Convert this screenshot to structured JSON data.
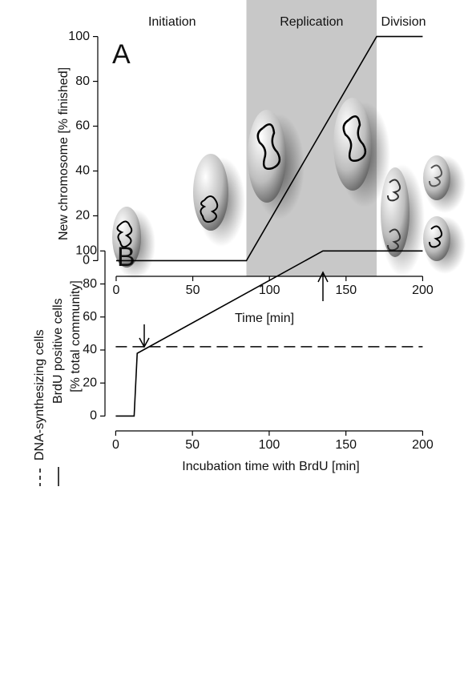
{
  "chart_data": [
    {
      "type": "line",
      "panel_label": "A",
      "xlabel": "Time [min]",
      "ylabel": "New chromosome [% finished]",
      "x": [
        0,
        85,
        170,
        200
      ],
      "values": [
        0,
        0,
        100,
        100
      ],
      "color": "#000000",
      "shaded_xrange": [
        85,
        170
      ],
      "shade_color": "#c8c8c8",
      "phases": [
        "Initiation",
        "Replication",
        "Division"
      ],
      "xlim": [
        -12,
        205
      ],
      "ylim": [
        -7,
        102
      ],
      "xticks": [
        0,
        50,
        100,
        150,
        200
      ],
      "yticks": [
        0,
        20,
        40,
        60,
        80,
        100
      ]
    },
    {
      "type": "line",
      "panel_label": "B",
      "xlabel": "Incubation time with BrdU [min]",
      "ylabel": "[% total community]",
      "series": [
        {
          "name": "DNA-synthesizing cells",
          "style": "dashed",
          "color": "#000000",
          "x": [
            0,
            200
          ],
          "values": [
            42,
            42
          ]
        },
        {
          "name": "BrdU positive cells",
          "style": "solid",
          "color": "#000000",
          "x": [
            0,
            12,
            14,
            135,
            200
          ],
          "values": [
            0,
            0,
            38,
            100,
            100
          ]
        }
      ],
      "xlim": [
        -7,
        205
      ],
      "ylim": [
        -9,
        105
      ],
      "xticks": [
        0,
        50,
        100,
        150,
        200
      ],
      "yticks": [
        0,
        20,
        40,
        60,
        80,
        100
      ]
    }
  ]
}
